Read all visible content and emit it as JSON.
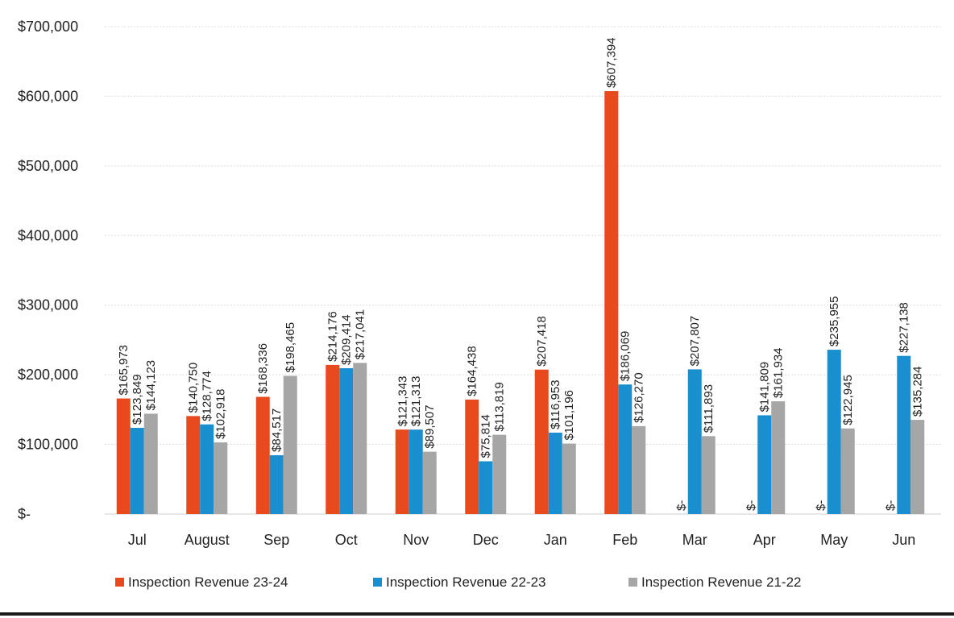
{
  "chart_data": {
    "type": "bar",
    "categories": [
      "Jul",
      "August",
      "Sep",
      "Oct",
      "Nov",
      "Dec",
      "Jan",
      "Feb",
      "Mar",
      "Apr",
      "May",
      "Jun"
    ],
    "series": [
      {
        "name": "Inspection Revenue 23-24",
        "color": "#e8491d",
        "values": [
          165973,
          140750,
          168336,
          214176,
          121343,
          164438,
          207418,
          607394,
          0,
          0,
          0,
          0
        ],
        "labels": [
          "$165,973",
          "$140,750",
          "$168,336",
          "$214,176",
          "$121,343",
          "$164,438",
          "$207,418",
          "$607,394",
          "$-",
          "$-",
          "$-",
          "$-"
        ]
      },
      {
        "name": "Inspection Revenue 22-23",
        "color": "#1a8fd0",
        "values": [
          123849,
          128774,
          84517,
          209414,
          121313,
          75814,
          116953,
          186069,
          207807,
          141809,
          235955,
          227138
        ],
        "labels": [
          "$123,849",
          "$128,774",
          "$84,517",
          "$209,414",
          "$121,313",
          "$75,814",
          "$116,953",
          "$186,069",
          "$207,807",
          "$141,809",
          "$235,955",
          "$227,138"
        ]
      },
      {
        "name": "Inspection Revenue 21-22",
        "color": "#a6a6a6",
        "values": [
          144123,
          102918,
          198465,
          217041,
          89507,
          113819,
          101196,
          126270,
          111893,
          161934,
          122945,
          135284
        ],
        "labels": [
          "$144,123",
          "$102,918",
          "$198,465",
          "$217,041",
          "$89,507",
          "$113,819",
          "$101,196",
          "$126,270",
          "$111,893",
          "$161,934",
          "$122,945",
          "$135,284"
        ]
      }
    ],
    "yticks": [
      0,
      100000,
      200000,
      300000,
      400000,
      500000,
      600000,
      700000
    ],
    "ytick_labels": [
      "$-",
      "$100,000",
      "$200,000",
      "$300,000",
      "$400,000",
      "$500,000",
      "$600,000",
      "$700,000"
    ],
    "ylim": [
      0,
      700000
    ],
    "grid": true,
    "legend_position": "bottom",
    "title": "",
    "xlabel": "",
    "ylabel": ""
  }
}
